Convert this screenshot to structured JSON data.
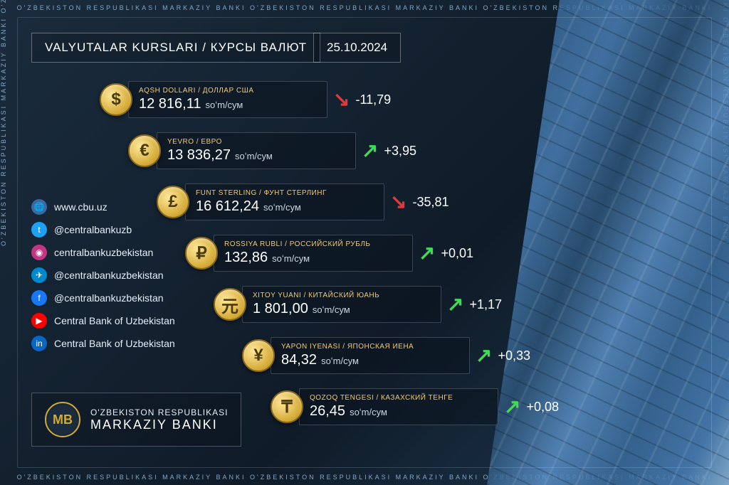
{
  "border_text": "O'ZBEKISTON RESPUBLIKASI MARKAZIY BANKI      O'ZBEKISTON RESPUBLIKASI MARKAZIY BANKI      O'ZBEKISTON RESPUBLIKASI MARKAZIY BANKI",
  "header": {
    "title": "VALYUTALAR KURSLARI / КУРСЫ ВАЛЮТ",
    "date": "25.10.2024"
  },
  "colors": {
    "up": "#3fdc52",
    "down": "#e43838",
    "coin_bg": "#d4a935",
    "name_color": "#f5c96b"
  },
  "rates": [
    {
      "symbol": "$",
      "name": "AQSH DOLLARI / ДОЛЛАР США",
      "value": "12 816,11",
      "unit": "soʻm/сум",
      "direction": "down",
      "change": "-11,79"
    },
    {
      "symbol": "€",
      "name": "YEVRO / ЕВРО",
      "value": "13 836,27",
      "unit": "soʻm/сум",
      "direction": "up",
      "change": "+3,95"
    },
    {
      "symbol": "£",
      "name": "FUNT STERLING / ФУНТ СТЕРЛИНГ",
      "value": "16 612,24",
      "unit": "soʻm/сум",
      "direction": "down",
      "change": "-35,81"
    },
    {
      "symbol": "₽",
      "name": "ROSSIYA RUBLI / РОССИЙСКИЙ РУБЛЬ",
      "value": "132,86",
      "unit": "soʻm/сум",
      "direction": "up",
      "change": "+0,01"
    },
    {
      "symbol": "元",
      "name": "XITOY YUANI / КИТАЙСКИЙ ЮАНЬ",
      "value": "1 801,00",
      "unit": "soʻm/сум",
      "direction": "up",
      "change": "+1,17"
    },
    {
      "symbol": "¥",
      "name": "YAPON IYENASI / ЯПОНСКАЯ ИЕНА",
      "value": "84,32",
      "unit": "soʻm/сум",
      "direction": "up",
      "change": "+0,33"
    },
    {
      "symbol": "₸",
      "name": "QOZOQ TENGESI / КАЗАХСКИЙ ТЕНГЕ",
      "value": "26,45",
      "unit": "soʻm/сум",
      "direction": "up",
      "change": "+0,08"
    }
  ],
  "socials": [
    {
      "icon": "🌐",
      "bg": "#3a6aa0",
      "label": "www.cbu.uz"
    },
    {
      "icon": "t",
      "bg": "#1da1f2",
      "label": "@centralbankuzb"
    },
    {
      "icon": "◉",
      "bg": "#c13584",
      "label": "centralbankuzbekistan"
    },
    {
      "icon": "✈",
      "bg": "#0088cc",
      "label": "@centralbankuzbekistan"
    },
    {
      "icon": "f",
      "bg": "#1877f2",
      "label": "@centralbankuzbekistan"
    },
    {
      "icon": "▶",
      "bg": "#ff0000",
      "label": "Central Bank of Uzbekistan"
    },
    {
      "icon": "in",
      "bg": "#0a66c2",
      "label": "Central Bank of Uzbekistan"
    }
  ],
  "logo": {
    "emblem": "MB",
    "line1": "O'ZBEKISTON RESPUBLIKASI",
    "line2": "MARKAZIY BANKI"
  }
}
